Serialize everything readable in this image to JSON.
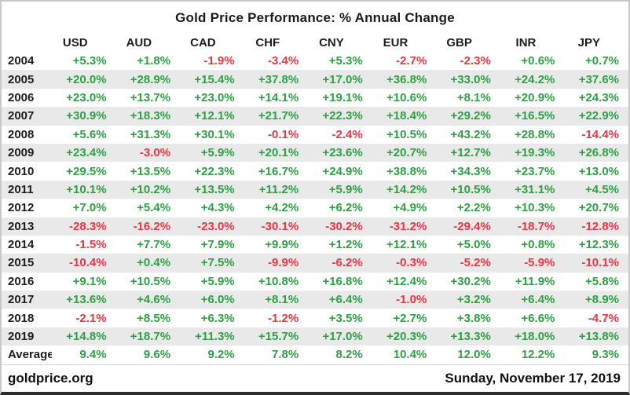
{
  "title": "Gold Price Performance: % Annual Change",
  "chart_data": {
    "type": "table",
    "title": "Gold Price Performance: % Annual Change",
    "columns": [
      "USD",
      "AUD",
      "CAD",
      "CHF",
      "CNY",
      "EUR",
      "GBP",
      "INR",
      "JPY"
    ],
    "row_label": "Year",
    "rows": [
      {
        "year": "2004",
        "values": [
          "+5.3%",
          "+1.8%",
          "-1.9%",
          "-3.4%",
          "+5.3%",
          "-2.7%",
          "-2.3%",
          "+0.6%",
          "+0.7%"
        ]
      },
      {
        "year": "2005",
        "values": [
          "+20.0%",
          "+28.9%",
          "+15.4%",
          "+37.8%",
          "+17.0%",
          "+36.8%",
          "+33.0%",
          "+24.2%",
          "+37.6%"
        ]
      },
      {
        "year": "2006",
        "values": [
          "+23.0%",
          "+13.7%",
          "+23.0%",
          "+14.1%",
          "+19.1%",
          "+10.6%",
          "+8.1%",
          "+20.9%",
          "+24.3%"
        ]
      },
      {
        "year": "2007",
        "values": [
          "+30.9%",
          "+18.3%",
          "+12.1%",
          "+21.7%",
          "+22.3%",
          "+18.4%",
          "+29.2%",
          "+16.5%",
          "+22.9%"
        ]
      },
      {
        "year": "2008",
        "values": [
          "+5.6%",
          "+31.3%",
          "+30.1%",
          "-0.1%",
          "-2.4%",
          "+10.5%",
          "+43.2%",
          "+28.8%",
          "-14.4%"
        ]
      },
      {
        "year": "2009",
        "values": [
          "+23.4%",
          "-3.0%",
          "+5.9%",
          "+20.1%",
          "+23.6%",
          "+20.7%",
          "+12.7%",
          "+19.3%",
          "+26.8%"
        ]
      },
      {
        "year": "2010",
        "values": [
          "+29.5%",
          "+13.5%",
          "+22.3%",
          "+16.7%",
          "+24.9%",
          "+38.8%",
          "+34.3%",
          "+23.7%",
          "+13.0%"
        ]
      },
      {
        "year": "2011",
        "values": [
          "+10.1%",
          "+10.2%",
          "+13.5%",
          "+11.2%",
          "+5.9%",
          "+14.2%",
          "+10.5%",
          "+31.1%",
          "+4.5%"
        ]
      },
      {
        "year": "2012",
        "values": [
          "+7.0%",
          "+5.4%",
          "+4.3%",
          "+4.2%",
          "+6.2%",
          "+4.9%",
          "+2.2%",
          "+10.3%",
          "+20.7%"
        ]
      },
      {
        "year": "2013",
        "values": [
          "-28.3%",
          "-16.2%",
          "-23.0%",
          "-30.1%",
          "-30.2%",
          "-31.2%",
          "-29.4%",
          "-18.7%",
          "-12.8%"
        ]
      },
      {
        "year": "2014",
        "values": [
          "-1.5%",
          "+7.7%",
          "+7.9%",
          "+9.9%",
          "+1.2%",
          "+12.1%",
          "+5.0%",
          "+0.8%",
          "+12.3%"
        ]
      },
      {
        "year": "2015",
        "values": [
          "-10.4%",
          "+0.4%",
          "+7.5%",
          "-9.9%",
          "-6.2%",
          "-0.3%",
          "-5.2%",
          "-5.9%",
          "-10.1%"
        ]
      },
      {
        "year": "2016",
        "values": [
          "+9.1%",
          "+10.5%",
          "+5.9%",
          "+10.8%",
          "+16.8%",
          "+12.4%",
          "+30.2%",
          "+11.9%",
          "+5.8%"
        ]
      },
      {
        "year": "2017",
        "values": [
          "+13.6%",
          "+4.6%",
          "+6.0%",
          "+8.1%",
          "+6.4%",
          "-1.0%",
          "+3.2%",
          "+6.4%",
          "+8.9%"
        ]
      },
      {
        "year": "2018",
        "values": [
          "-2.1%",
          "+8.5%",
          "+6.3%",
          "-1.2%",
          "+3.5%",
          "+2.7%",
          "+3.8%",
          "+6.6%",
          "-4.7%"
        ]
      },
      {
        "year": "2019",
        "values": [
          "+14.8%",
          "+18.7%",
          "+11.3%",
          "+15.7%",
          "+17.0%",
          "+20.3%",
          "+13.3%",
          "+18.0%",
          "+13.8%"
        ]
      },
      {
        "year": "Average",
        "values": [
          "9.4%",
          "9.6%",
          "9.2%",
          "7.8%",
          "8.2%",
          "10.4%",
          "12.0%",
          "12.2%",
          "9.3%"
        ]
      }
    ]
  },
  "footer": {
    "site": "goldprice.org",
    "date": "Sunday, November 17, 2019"
  },
  "colors": {
    "positive": "#2da044",
    "negative": "#ef3340",
    "stripe": "#e9e9e9",
    "bottom_border": "#2e2e2e"
  }
}
